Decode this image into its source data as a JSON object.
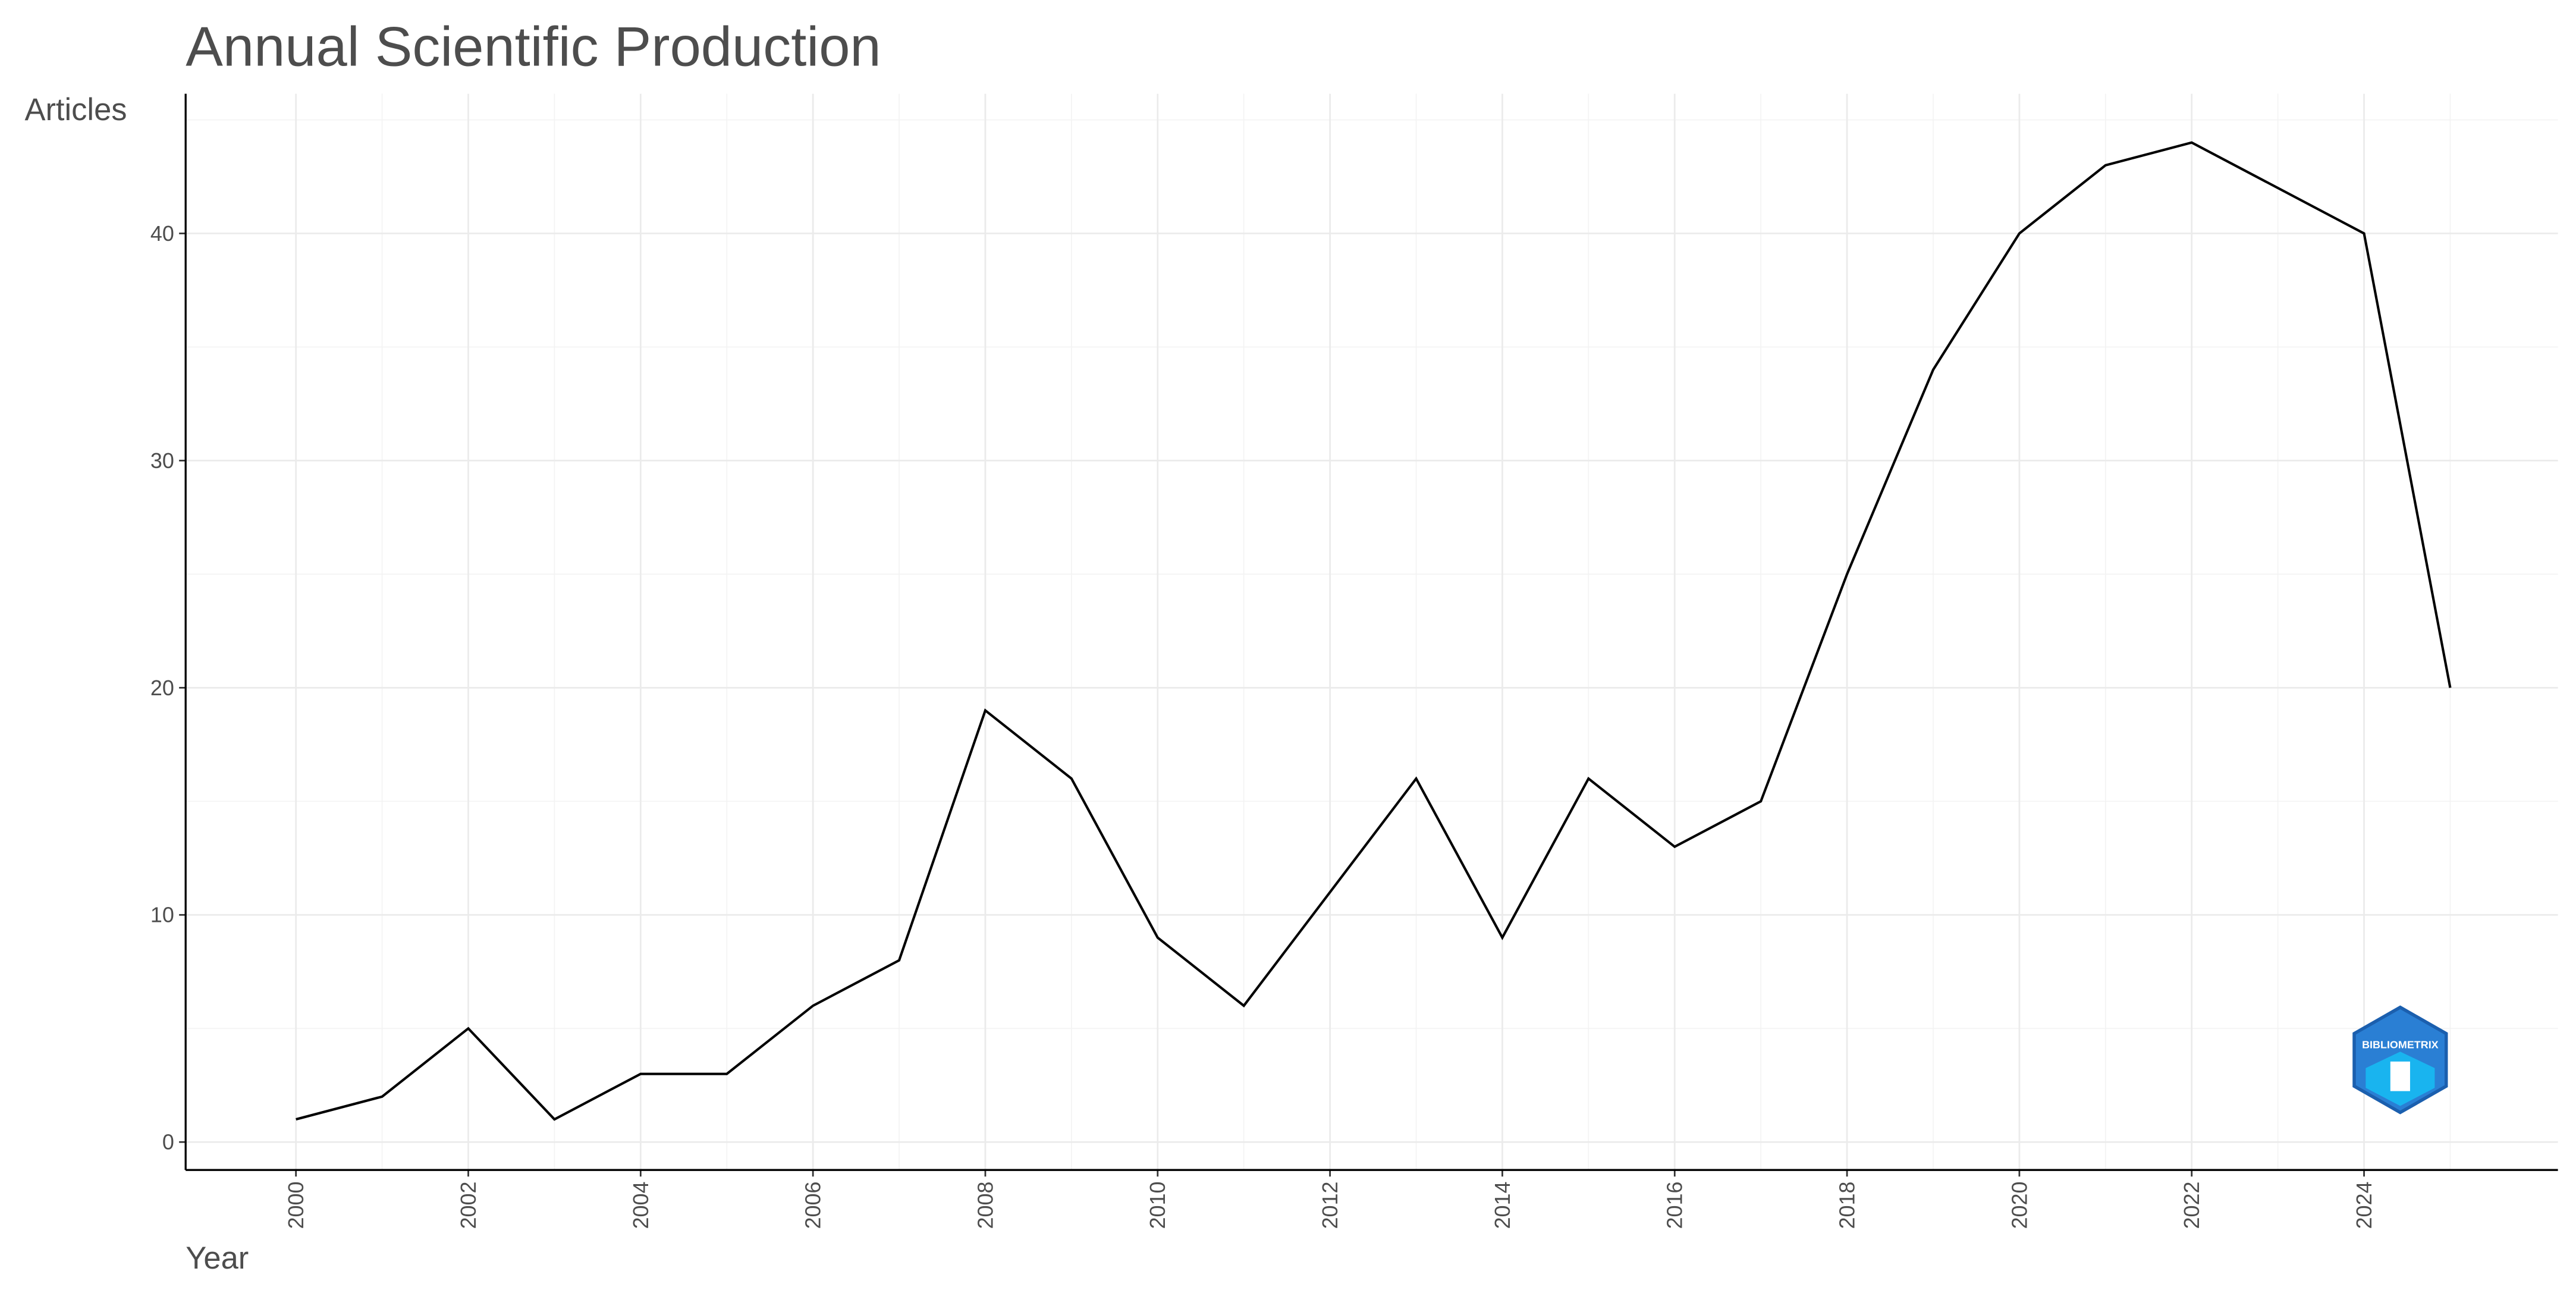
{
  "chart_data": {
    "type": "line",
    "title": "Annual Scientific Production",
    "x_label": "Year",
    "y_label": "Articles",
    "x": [
      2000,
      2001,
      2002,
      2003,
      2004,
      2005,
      2006,
      2007,
      2008,
      2009,
      2010,
      2011,
      2012,
      2013,
      2014,
      2015,
      2016,
      2017,
      2018,
      2019,
      2020,
      2021,
      2022,
      2023,
      2024,
      2025
    ],
    "values": [
      1,
      2,
      5,
      1,
      3,
      3,
      6,
      8,
      19,
      16,
      9,
      6,
      11,
      16,
      9,
      16,
      13,
      15,
      25,
      34,
      40,
      43,
      44,
      42,
      40,
      20
    ],
    "color": "#000000",
    "xlim": [
      1998.72,
      2026.25
    ],
    "xticks": [
      2000,
      2002,
      2004,
      2006,
      2008,
      2010,
      2012,
      2014,
      2016,
      2018,
      2020,
      2022,
      2024
    ],
    "ylim": [
      -1.23,
      46.15
    ],
    "yticks": [
      0,
      10,
      20,
      30,
      40
    ],
    "grid": true
  },
  "logo": "BIBLIOMETRIX"
}
